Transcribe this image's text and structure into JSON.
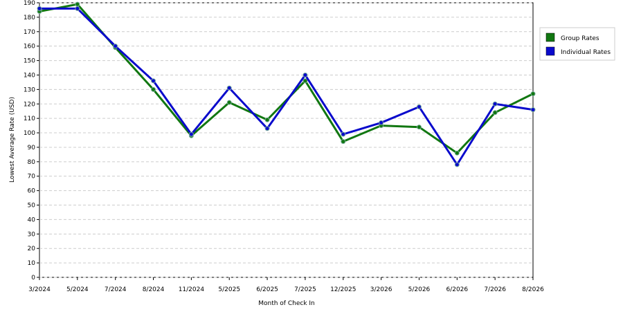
{
  "chart_data": {
    "type": "line",
    "x_label": "Month of Check In",
    "y_label": "Lowest Average Rate (USD)",
    "categories": [
      "3/2024",
      "5/2024",
      "7/2024",
      "8/2024",
      "11/2024",
      "5/2025",
      "6/2025",
      "7/2025",
      "12/2025",
      "3/2026",
      "5/2026",
      "6/2026",
      "7/2026",
      "8/2026"
    ],
    "series": [
      {
        "name": "Group Rates",
        "color": "#117711",
        "values": [
          184,
          189,
          159,
          130,
          98,
          121,
          109,
          136,
          94,
          105,
          104,
          86,
          114,
          127
        ]
      },
      {
        "name": "Individual Rates",
        "color": "#0a0acc",
        "values": [
          186,
          186,
          160,
          136,
          99,
          131,
          103,
          140,
          99,
          107,
          118,
          78,
          120,
          116
        ]
      }
    ],
    "ylim": [
      0,
      190
    ],
    "yticks": [
      0,
      10,
      20,
      30,
      40,
      50,
      60,
      70,
      80,
      90,
      100,
      110,
      120,
      130,
      140,
      150,
      160,
      170,
      180,
      190
    ],
    "grid": true,
    "legend": "right"
  }
}
